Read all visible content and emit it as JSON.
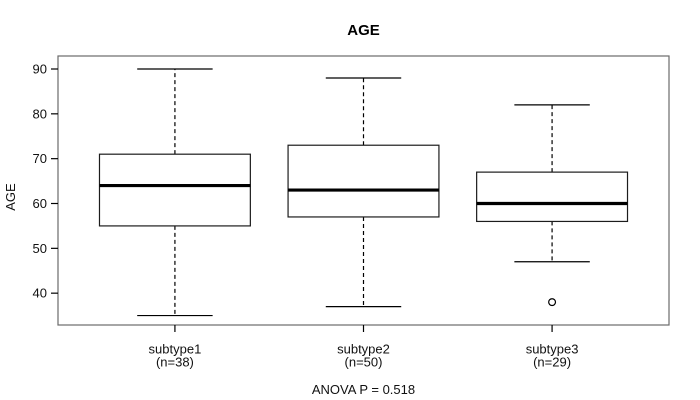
{
  "chart_data": {
    "type": "boxplot",
    "title": "AGE",
    "ylabel": "AGE",
    "xlabel": "",
    "annotation": "ANOVA P = 0.518",
    "ylim": [
      32.9,
      92.9
    ],
    "yticks": [
      40,
      50,
      60,
      70,
      80,
      90
    ],
    "grid": false,
    "groups": [
      {
        "label": "subtype1",
        "sublabel": "(n=38)",
        "n": 38,
        "whisker_low": 35,
        "q1": 55,
        "median": 64,
        "q3": 71,
        "whisker_high": 90,
        "outliers": []
      },
      {
        "label": "subtype2",
        "sublabel": "(n=50)",
        "n": 50,
        "whisker_low": 37,
        "q1": 57,
        "median": 63,
        "q3": 73,
        "whisker_high": 88,
        "outliers": []
      },
      {
        "label": "subtype3",
        "sublabel": "(n=29)",
        "n": 29,
        "whisker_low": 47,
        "q1": 56,
        "median": 60,
        "q3": 67,
        "whisker_high": 82,
        "outliers": [
          38
        ]
      }
    ],
    "colors": {
      "frame": "#6a6a6a",
      "line": "#000000",
      "box_outline": "#1c1c1c",
      "median": "#000000",
      "box_fill": "#ffffff",
      "text": "#111111"
    }
  }
}
